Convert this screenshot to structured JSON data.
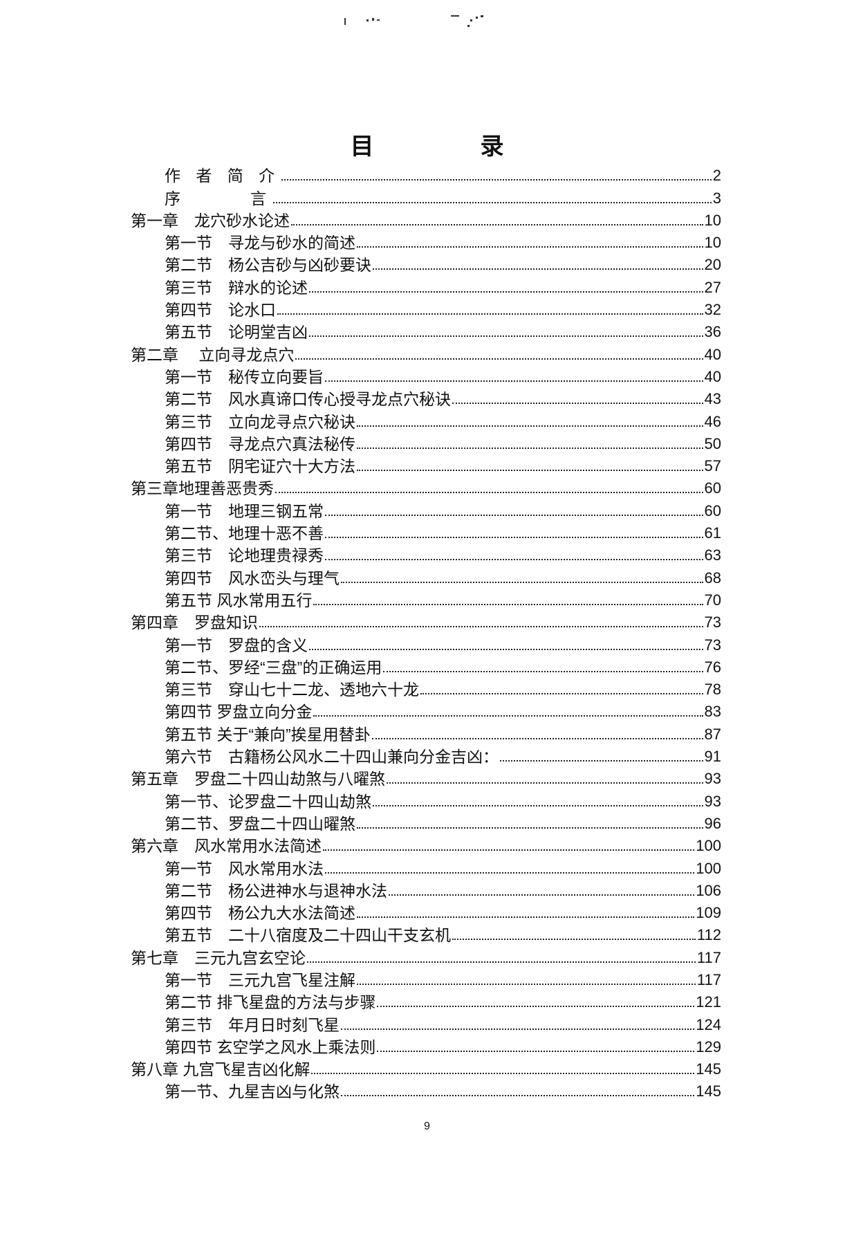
{
  "title": "目　录",
  "entries": [
    {
      "level": "front",
      "label": "作 者 简 介",
      "page": "2"
    },
    {
      "level": "front",
      "label": "序　　　言",
      "page": "3"
    },
    {
      "level": "chapter",
      "label": "第一章　龙穴砂水论述",
      "page": "10"
    },
    {
      "level": "section",
      "label": "第一节　寻龙与砂水的简述",
      "page": "10"
    },
    {
      "level": "section",
      "label": "第二节　杨公吉砂与凶砂要诀",
      "page": "20"
    },
    {
      "level": "section",
      "label": "第三节　辩水的论述",
      "page": "27"
    },
    {
      "level": "section",
      "label": "第四节　论水口",
      "page": "32"
    },
    {
      "level": "section",
      "label": "第五节　论明堂吉凶",
      "page": "36"
    },
    {
      "level": "chapter",
      "label": "第二章　 立向寻龙点穴",
      "page": "40"
    },
    {
      "level": "section",
      "label": "第一节　秘传立向要旨",
      "page": "40"
    },
    {
      "level": "section",
      "label": "第二节　风水真谛口传心授寻龙点穴秘诀",
      "page": "43"
    },
    {
      "level": "section",
      "label": "第三节　立向龙寻点穴秘诀",
      "page": "46"
    },
    {
      "level": "section",
      "label": "第四节　寻龙点穴真法秘传",
      "page": "50"
    },
    {
      "level": "section",
      "label": "第五节　阴宅证穴十大方法",
      "page": "57"
    },
    {
      "level": "chapter",
      "label": "第三章地理善恶贵秀",
      "page": "60"
    },
    {
      "level": "section",
      "label": "第一节　地理三钢五常",
      "page": "60"
    },
    {
      "level": "section",
      "label": "第二节、地理十恶不善",
      "page": "61"
    },
    {
      "level": "section",
      "label": "第三节　论地理贵禄秀",
      "page": "63"
    },
    {
      "level": "section",
      "label": "第四节　风水峦头与理气",
      "page": "68"
    },
    {
      "level": "section",
      "label": "第五节 风水常用五行",
      "page": "70"
    },
    {
      "level": "chapter",
      "label": "第四章　罗盘知识",
      "page": "73"
    },
    {
      "level": "section",
      "label": "第一节　罗盘的含义",
      "page": "73"
    },
    {
      "level": "section",
      "label": "第二节、罗经“三盘”的正确运用",
      "page": "76"
    },
    {
      "level": "section",
      "label": "第三节　穿山七十二龙、透地六十龙",
      "page": "78"
    },
    {
      "level": "section",
      "label": "第四节 罗盘立向分金",
      "page": "83"
    },
    {
      "level": "section",
      "label": "第五节 关于“兼向”挨星用替卦",
      "page": "87"
    },
    {
      "level": "section",
      "label": "第六节　古籍杨公风水二十四山兼向分金吉凶：",
      "page": "91"
    },
    {
      "level": "chapter",
      "label": "第五章　罗盘二十四山劫煞与八曜煞",
      "page": "93"
    },
    {
      "level": "section",
      "label": "第一节、论罗盘二十四山劫煞",
      "page": "93"
    },
    {
      "level": "section",
      "label": "第二节、罗盘二十四山曜煞",
      "page": "96"
    },
    {
      "level": "chapter",
      "label": "第六章　风水常用水法简述",
      "page": "100"
    },
    {
      "level": "section",
      "label": "第一节　风水常用水法",
      "page": "100"
    },
    {
      "level": "section",
      "label": "第二节　杨公进神水与退神水法",
      "page": "106"
    },
    {
      "level": "section",
      "label": "第四节　杨公九大水法简述",
      "page": "109"
    },
    {
      "level": "section",
      "label": "第五节　二十八宿度及二十四山干支玄机",
      "page": "112"
    },
    {
      "level": "chapter",
      "label": "第七章　三元九宫玄空论",
      "page": "117"
    },
    {
      "level": "section",
      "label": "第一节　三元九宫飞星注解",
      "page": "117"
    },
    {
      "level": "section",
      "label": "第二节 排飞星盘的方法与步骤",
      "page": "121"
    },
    {
      "level": "section",
      "label": "第三节　年月日时刻飞星",
      "page": "124"
    },
    {
      "level": "section",
      "label": "第四节 玄空学之风水上乘法则",
      "page": "129"
    },
    {
      "level": "chapter",
      "label": "第八章 九宫飞星吉凶化解",
      "page": "145"
    },
    {
      "level": "section",
      "label": "第一节、九星吉凶与化煞",
      "page": "145"
    }
  ],
  "page_number": "9"
}
